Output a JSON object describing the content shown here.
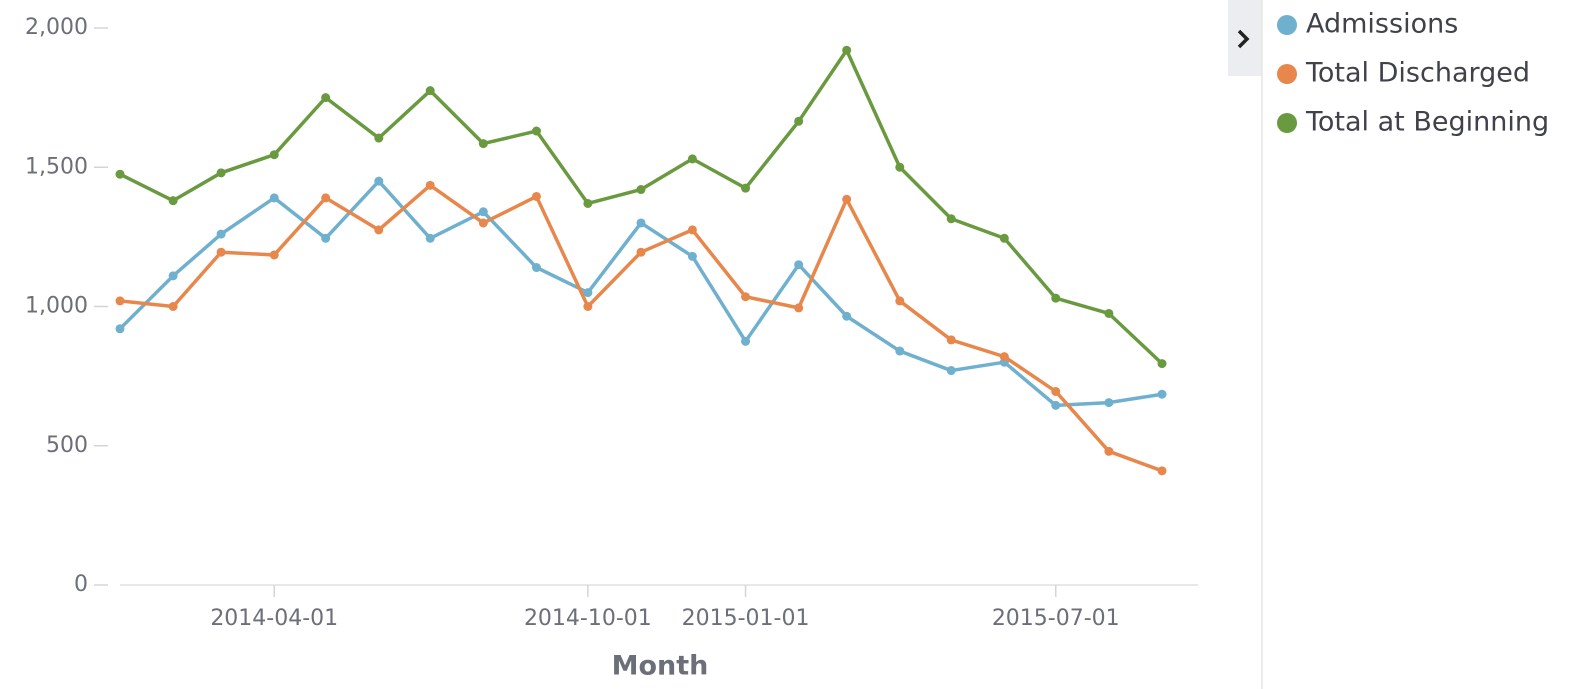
{
  "chart_data": {
    "type": "line",
    "x_label": "Month",
    "x": [
      "2014-01-01",
      "2014-02-01",
      "2014-03-01",
      "2014-04-01",
      "2014-05-01",
      "2014-06-01",
      "2014-07-01",
      "2014-08-01",
      "2014-09-01",
      "2014-10-01",
      "2014-11-01",
      "2014-12-01",
      "2015-01-01",
      "2015-02-01",
      "2015-03-01",
      "2015-04-01",
      "2015-05-01",
      "2015-06-01",
      "2015-07-01",
      "2015-08-01",
      "2015-09-01"
    ],
    "xlim": [
      "2014-01-01",
      "2015-09-22"
    ],
    "xticks": [
      "2014-04-01",
      "2014-10-01",
      "2015-01-01",
      "2015-07-01"
    ],
    "ylim": [
      0,
      2000
    ],
    "yticks": [
      0,
      500,
      {
        "value": 1000,
        "label": "1,000"
      },
      {
        "value": 1500,
        "label": "1,500"
      },
      {
        "value": 2000,
        "label": "2,000"
      }
    ],
    "grid": false,
    "legend": "right",
    "series": [
      {
        "name": "Admissions",
        "color": "#6fb0cf",
        "values": [
          920,
          1110,
          1260,
          1390,
          1245,
          1450,
          1245,
          1340,
          1140,
          1050,
          1300,
          1180,
          875,
          1150,
          965,
          840,
          770,
          800,
          645,
          655,
          685
        ]
      },
      {
        "name": "Total Discharged",
        "color": "#e8874b",
        "values": [
          1020,
          1000,
          1195,
          1185,
          1390,
          1275,
          1435,
          1300,
          1395,
          1000,
          1195,
          1275,
          1035,
          995,
          1385,
          1020,
          880,
          820,
          695,
          480,
          410
        ]
      },
      {
        "name": "Total at Beginning",
        "color": "#6a9a3f",
        "values": [
          1475,
          1380,
          1480,
          1545,
          1750,
          1605,
          1775,
          1585,
          1630,
          1370,
          1420,
          1530,
          1425,
          1665,
          1920,
          1500,
          1315,
          1245,
          1030,
          975,
          795
        ]
      }
    ]
  }
}
